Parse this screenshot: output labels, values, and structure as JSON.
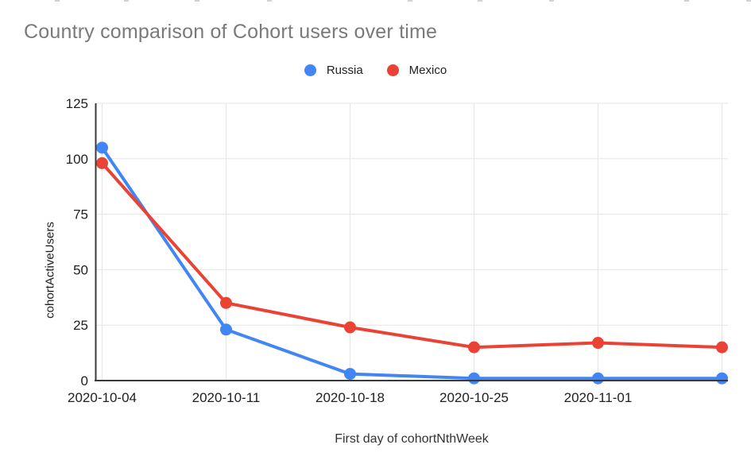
{
  "chart_data": {
    "type": "line",
    "title": "Country comparison of Cohort users over time",
    "xlabel": "First day of cohortNthWeek",
    "ylabel": "cohortActiveUsers",
    "x_tick_labels": [
      "2020-10-04",
      "2020-10-11",
      "2020-10-18",
      "2020-10-25",
      "2020-11-01",
      ""
    ],
    "y_ticks": [
      0,
      25,
      50,
      75,
      100,
      125
    ],
    "ylim": [
      0,
      125
    ],
    "grid": true,
    "legend_position": "top-center",
    "series": [
      {
        "name": "Russia",
        "color": "#4285F4",
        "values": [
          105,
          23,
          3,
          1,
          1,
          1
        ]
      },
      {
        "name": "Mexico",
        "color": "#EA4335",
        "values": [
          98,
          35,
          24,
          15,
          17,
          15
        ]
      }
    ],
    "colors": {
      "gridline": "#e6e6e6",
      "axis_line": "#3a3a3a",
      "tick_text": "#202124",
      "title_text": "#7a7a7a"
    }
  }
}
